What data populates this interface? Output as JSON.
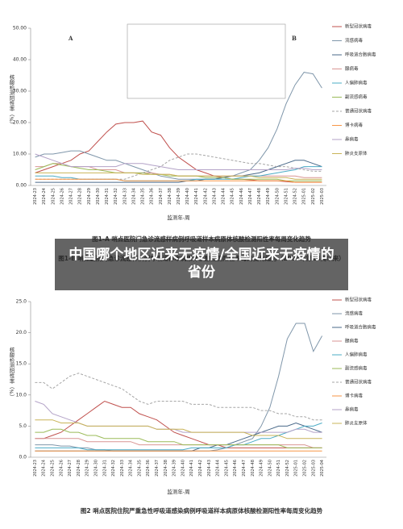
{
  "overlay_title": "中国哪个地区近来无疫情/全国近来无疫情的省份",
  "chart_data": [
    {
      "type": "line",
      "caption": "图1-A 哨点医院门急诊流感样病例呼吸道样本病原体核酸检测阳性率每周变化趋势",
      "annotations": [
        "A",
        "B"
      ],
      "ylabel": "核酸检测阳性率（%）",
      "xlabel": "监测年-周",
      "categories": [
        "2024-23",
        "2024-24",
        "2024-25",
        "2024-26",
        "2024-27",
        "2024-28",
        "2024-29",
        "2024-30",
        "2024-31",
        "2024-32",
        "2024-33",
        "2024-34",
        "2024-35",
        "2024-36",
        "2024-37",
        "2024-38",
        "2024-39",
        "2024-40",
        "2024-41",
        "2024-42",
        "2024-43",
        "2024-44",
        "2024-45",
        "2024-46",
        "2024-47",
        "2024-48",
        "2024-49",
        "2024-50",
        "2024-51",
        "2024-52",
        "2025-01",
        "2025-02",
        "2025-03"
      ],
      "ylim": [
        0,
        50
      ],
      "yticks": [
        {
          "value": 0,
          "label": "0.00"
        },
        {
          "value": 10,
          "label": "10.00"
        },
        {
          "value": 20,
          "label": "20.00"
        },
        {
          "value": 30,
          "label": "30.00"
        },
        {
          "value": 40,
          "label": "40.00"
        },
        {
          "value": 50,
          "label": "50.00"
        }
      ],
      "series": [
        {
          "name": "新型冠状病毒",
          "color": "#c0504d",
          "values": [
            4,
            5,
            6,
            7,
            8,
            10,
            11,
            14,
            17,
            19.5,
            20,
            20,
            20.5,
            17,
            16,
            12,
            9,
            7,
            5,
            4,
            3,
            2.5,
            2,
            2,
            1.8,
            1.5,
            1.5,
            1.5,
            1.2,
            1,
            1,
            1,
            1
          ]
        },
        {
          "name": "流感病毒",
          "color": "#7f96aa",
          "values": [
            9,
            10,
            10,
            10.5,
            11,
            11,
            10,
            9,
            8,
            8,
            7,
            6,
            5,
            4,
            3,
            2.5,
            2,
            2,
            2,
            2,
            2,
            2.5,
            3,
            4,
            5,
            8,
            12,
            18,
            26,
            32,
            36,
            35.5,
            31
          ]
        },
        {
          "name": "呼吸道合胞病毒",
          "color": "#4a6a8a",
          "values": [
            1,
            1,
            1,
            1,
            1,
            1,
            1,
            1,
            1,
            1,
            1,
            1,
            1,
            1,
            1,
            1,
            1,
            1.5,
            1.5,
            2,
            2,
            2.5,
            3,
            3,
            3.5,
            4,
            5,
            6,
            7,
            8,
            8,
            7,
            6
          ]
        },
        {
          "name": "腺病毒",
          "color": "#d99694",
          "values": [
            6,
            6,
            7,
            7,
            6,
            6,
            6,
            5,
            5,
            5,
            4,
            4,
            4,
            4,
            3.5,
            3.5,
            3,
            3,
            3,
            3,
            3,
            3,
            3,
            3,
            3,
            3,
            3,
            3,
            3,
            3,
            2.5,
            2.5,
            2.5
          ]
        },
        {
          "name": "人偏肺病毒",
          "color": "#4bacc6",
          "values": [
            3,
            3,
            3,
            2.5,
            2.5,
            2,
            2,
            2,
            2,
            2,
            1.5,
            1.5,
            1.5,
            1.5,
            1.5,
            1.5,
            1.5,
            1.5,
            2,
            2,
            2,
            2,
            2,
            2.5,
            3,
            3,
            3.5,
            4,
            4.5,
            5,
            6,
            6,
            6
          ]
        },
        {
          "name": "副流感病毒",
          "color": "#9bbb59",
          "values": [
            5,
            6,
            7,
            6.5,
            6,
            5.5,
            5,
            5,
            4.5,
            4,
            4,
            4,
            4,
            3.5,
            3.5,
            3,
            3,
            3,
            3,
            2.5,
            2.5,
            2.5,
            2,
            2,
            2,
            2,
            2,
            2,
            1.5,
            1.5,
            1.5,
            1.5,
            1.5
          ]
        },
        {
          "name": "普通冠状病毒",
          "color": "#a6a6a6",
          "dashed": true,
          "values": [
            2,
            2,
            2,
            2,
            2,
            2,
            2,
            2,
            2,
            2,
            2,
            3,
            4,
            5,
            6,
            8,
            9,
            10,
            10,
            9.5,
            9,
            8.5,
            8,
            7.5,
            7,
            7,
            6.5,
            6,
            6,
            5.5,
            5,
            4.5,
            4.5
          ]
        },
        {
          "name": "博卡病毒",
          "color": "#f79646",
          "values": [
            2,
            2,
            2,
            2,
            2,
            2,
            2,
            2,
            2,
            2,
            1.5,
            1.5,
            1.5,
            1.5,
            1.5,
            1.5,
            1.5,
            1.5,
            1.5,
            1.5,
            1.5,
            1.5,
            1.5,
            1.5,
            1.5,
            1.5,
            1.5,
            1.5,
            1.5,
            1,
            1,
            1,
            1
          ]
        },
        {
          "name": "鼻病毒",
          "color": "#b3a2c7",
          "values": [
            10,
            9,
            8,
            7,
            6,
            6,
            6,
            6,
            6,
            6,
            7,
            7,
            7,
            6.5,
            6,
            5.5,
            5,
            5,
            5,
            5,
            5,
            5,
            5,
            5,
            5,
            5,
            5,
            5,
            5,
            5.5,
            5.5,
            5,
            5
          ]
        },
        {
          "name": "肺炎支原体",
          "color": "#c9b458",
          "values": [
            4,
            4,
            4,
            4,
            4,
            4,
            4,
            4,
            4,
            4,
            4,
            4,
            3.5,
            3.5,
            3.5,
            3.5,
            3,
            3,
            3,
            3,
            3,
            3,
            3,
            3,
            3,
            2.5,
            2.5,
            2.5,
            2.5,
            2,
            2,
            2,
            2
          ]
        }
      ]
    },
    {
      "type": "line",
      "title": "图1-B 哨点医院门急诊流感样病例呼吸道样本病原体核酸检测阳性率每周变化趋势（2024年第14周以来）",
      "caption": "图2 哨点医院住院严重急性呼吸道感染病例呼吸道样本病原体核酸检测阳性率每周变化趋势",
      "ylabel": "核酸检测阳性率（%）",
      "xlabel": "监测年-周",
      "categories": [
        "2024-23",
        "2024-24",
        "2024-25",
        "2024-26",
        "2024-27",
        "2024-28",
        "2024-29",
        "2024-30",
        "2024-31",
        "2024-32",
        "2024-33",
        "2024-34",
        "2024-35",
        "2024-36",
        "2024-37",
        "2024-38",
        "2024-39",
        "2024-40",
        "2024-41",
        "2024-42",
        "2024-43",
        "2024-44",
        "2024-45",
        "2024-46",
        "2024-47",
        "2024-48",
        "2024-49",
        "2024-50",
        "2024-51",
        "2024-52",
        "2025-01",
        "2025-02",
        "2025-03",
        "2025-04"
      ],
      "ylim": [
        0,
        25
      ],
      "yticks": [
        {
          "value": 0,
          "label": "0.0"
        },
        {
          "value": 5,
          "label": "5.0"
        },
        {
          "value": 10,
          "label": "10.0"
        },
        {
          "value": 15,
          "label": "15.0"
        },
        {
          "value": 20,
          "label": "20.0"
        },
        {
          "value": 25,
          "label": "25.0"
        }
      ],
      "series": [
        {
          "name": "新型冠状病毒",
          "color": "#c0504d",
          "values": [
            3,
            3,
            3.5,
            4,
            5,
            6,
            7,
            8,
            9,
            8.5,
            8,
            8,
            7,
            6.5,
            6,
            5,
            4,
            3.5,
            3,
            2.5,
            2,
            2,
            1.5,
            1.5,
            1.5,
            1.5,
            1.5,
            1.5,
            1.5,
            1.5,
            1.5,
            1.5,
            1.5,
            1.5
          ]
        },
        {
          "name": "流感病毒",
          "color": "#7f96aa",
          "values": [
            2,
            2,
            2,
            1.8,
            1.8,
            1.5,
            1.5,
            1.2,
            1.2,
            1,
            1,
            1,
            1,
            1,
            1,
            1,
            1,
            1,
            1,
            1,
            1,
            1.2,
            1.5,
            2,
            2.5,
            3,
            5,
            8,
            13,
            19,
            21.5,
            21.5,
            17,
            19.5
          ]
        },
        {
          "name": "呼吸道合胞病毒",
          "color": "#4a6a8a",
          "values": [
            1,
            1,
            1,
            1,
            1,
            1,
            1,
            1,
            1,
            1,
            1,
            1,
            1,
            1,
            1,
            1,
            1,
            1,
            1,
            1.5,
            1.5,
            2,
            2,
            2.5,
            3,
            3.5,
            4,
            4.5,
            5,
            5,
            5.5,
            5,
            4.5,
            4
          ]
        },
        {
          "name": "腺病毒",
          "color": "#d99694",
          "values": [
            3,
            3,
            3,
            3,
            3,
            3,
            2.5,
            2.5,
            2.5,
            2.5,
            2.5,
            2.5,
            2,
            2,
            2,
            2,
            2,
            2,
            2,
            2,
            2,
            2,
            2,
            2,
            2,
            2,
            2,
            2,
            2,
            2,
            2,
            2,
            1.5,
            1.5
          ]
        },
        {
          "name": "人偏肺病毒",
          "color": "#4bacc6",
          "values": [
            1.5,
            1.5,
            1.5,
            1.5,
            1.5,
            1.5,
            1.2,
            1.2,
            1.2,
            1.2,
            1.2,
            1.2,
            1.2,
            1.2,
            1.2,
            1.2,
            1.2,
            1.2,
            1.5,
            1.5,
            1.5,
            1.5,
            1.5,
            2,
            2,
            2.5,
            3,
            3,
            3.5,
            4,
            4.5,
            5,
            5,
            5.5
          ]
        },
        {
          "name": "副流感病毒",
          "color": "#9bbb59",
          "values": [
            4,
            4,
            4.5,
            4.5,
            4,
            4,
            3.5,
            3.5,
            3,
            3,
            3,
            3,
            3,
            2.5,
            2.5,
            2.5,
            2.5,
            2,
            2,
            2,
            2,
            2,
            2,
            2,
            2,
            2,
            2,
            2,
            2,
            1.5,
            1.5,
            1.5,
            1.5,
            1.5
          ]
        },
        {
          "name": "普通冠状病毒",
          "color": "#a6a6a6",
          "dashed": true,
          "values": [
            12,
            12,
            11,
            12,
            13,
            13.5,
            13,
            12.5,
            12,
            11.5,
            11,
            10,
            9,
            8.5,
            9,
            9,
            9,
            9,
            8.5,
            8.5,
            8.5,
            8,
            8,
            8,
            8,
            8,
            7.5,
            7.5,
            7,
            7,
            6.5,
            6.5,
            6,
            6
          ]
        },
        {
          "name": "博卡病毒",
          "color": "#f79646",
          "values": [
            1,
            1,
            1,
            1,
            1,
            1,
            1,
            1,
            1,
            1,
            1,
            1,
            1,
            1,
            1,
            1,
            1,
            1,
            1,
            1,
            1,
            1,
            1,
            1,
            1,
            1,
            1,
            1,
            1,
            1,
            1,
            1,
            1,
            1
          ]
        },
        {
          "name": "鼻病毒",
          "color": "#b3a2c7",
          "values": [
            9,
            8.5,
            7,
            6.5,
            6,
            5.5,
            5,
            5,
            5,
            5,
            5,
            5,
            5,
            5,
            4.5,
            4.5,
            4.5,
            4,
            4,
            4,
            4,
            4,
            4,
            4,
            4,
            4,
            4,
            4,
            4,
            4,
            4.5,
            4.5,
            4,
            4
          ]
        },
        {
          "name": "肺炎支原体",
          "color": "#c9b458",
          "values": [
            6,
            6,
            6,
            5.5,
            5.5,
            5.5,
            5,
            5,
            5,
            5,
            5,
            5,
            5,
            5,
            4.5,
            4.5,
            4.5,
            4.5,
            4,
            4,
            4,
            4,
            4,
            4,
            4,
            3.5,
            3.5,
            3.5,
            3.5,
            3,
            3,
            3,
            3,
            3
          ]
        }
      ]
    }
  ]
}
